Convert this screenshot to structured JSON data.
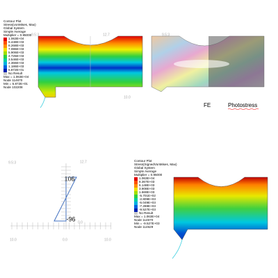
{
  "top_left": {
    "legend": {
      "lines": [
        "Contour Plot",
        "Stress(vonMises, Max)",
        "Global System",
        "Simple Average",
        "Multiplier = 0.95000"
      ],
      "levels": [
        "1.063E+04",
        "9.448E+03",
        "8.268E+03",
        "7.086E+03",
        "5.906E+03",
        "4.725E+03",
        "3.546E+03",
        "2.366E+03",
        "1.186E+03",
        "5.872E+01"
      ],
      "no_result": "No Result",
      "summary": [
        "Max = 1.063E+04",
        "Node 114670",
        "Min = 5.872E+01",
        "Node 102208"
      ]
    },
    "axis_labels": [
      "9.5:3",
      "12.7",
      "10.0"
    ]
  },
  "top_right": {
    "axis_labels": [
      "9.5:3"
    ],
    "captions": [
      "FE",
      "Photostress"
    ]
  },
  "bottom_left": {
    "axis_labels": [
      "9.5:3",
      "12.7",
      "0.0",
      "10.0",
      "0.0",
      "10.0"
    ],
    "annotations": [
      "106",
      "-96"
    ]
  },
  "bottom_right": {
    "legend": {
      "lines": [
        "Contour Plot",
        "Stress(SignedVonMises, Max)",
        "Global System",
        "Simple Average",
        "Multiplier = 0.95000"
      ],
      "levels": [
        "1.063E+04",
        "8.367E+03",
        "6.148E+03",
        "3.908E+03",
        "1.669E+03",
        "-5.701E+02",
        "-2.809E+03",
        "-5.049E+03",
        "-7.288E+03",
        "-9.527E+03"
      ],
      "no_result": "No Result",
      "summary": [
        "Max = 1.063E+04",
        "Node 114670",
        "Min = -9.527E+03",
        "Node 114629"
      ]
    }
  }
}
